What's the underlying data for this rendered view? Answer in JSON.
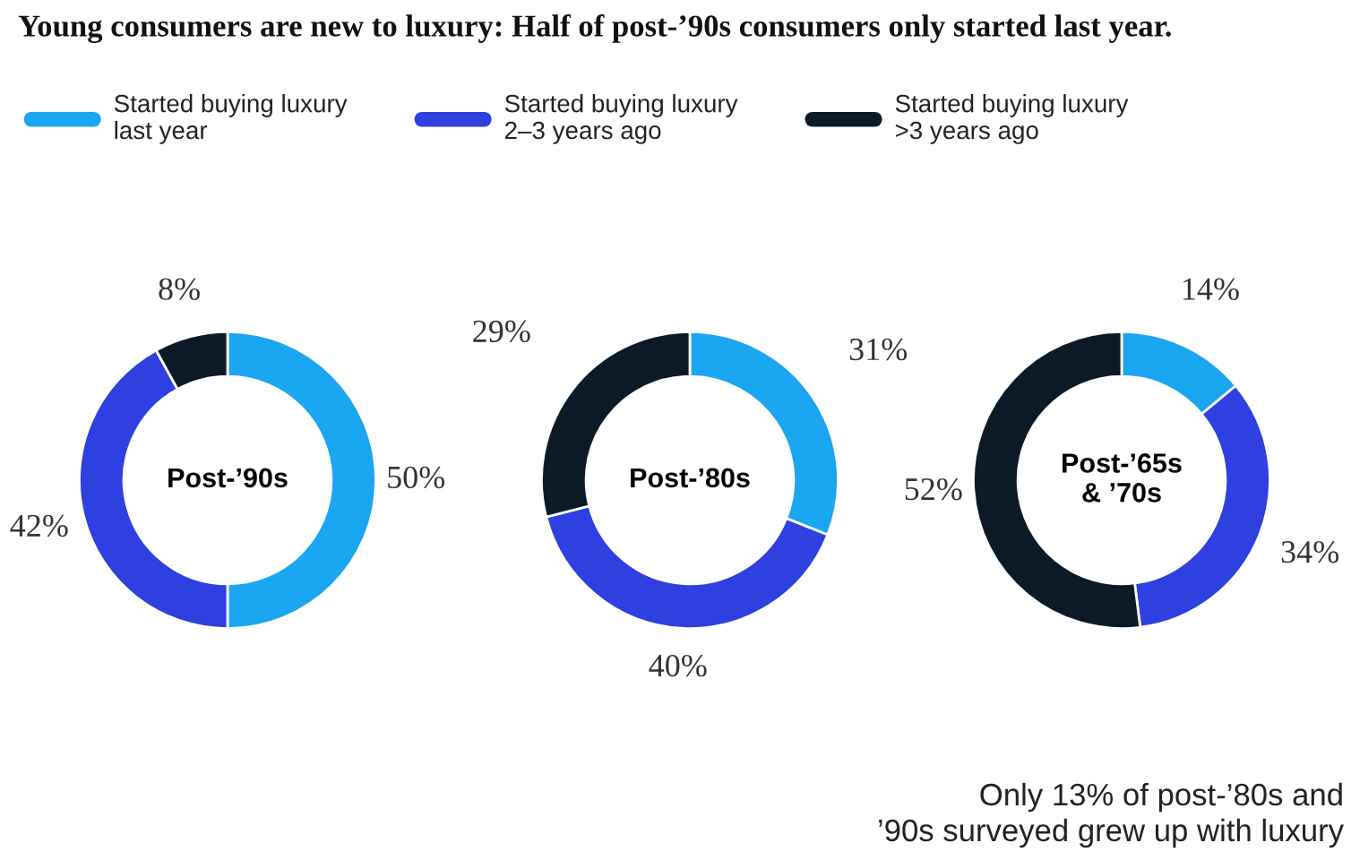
{
  "chart_data": [
    {
      "type": "donut",
      "title": "Young consumers are new to luxury: Half of post-’90s consumers only started last year.",
      "categories": [
        "Started buying luxury\nlast year",
        "Started buying luxury\n2–3 years ago",
        "Started buying luxury\n>3 years ago"
      ],
      "values": [
        50,
        42,
        8
      ],
      "value_labels": [
        "50%",
        "42%",
        "8%"
      ],
      "colors": [
        "#1aa6f0",
        "#2f3fe0",
        "#0c1a28"
      ],
      "legend": "top",
      "annotations": [
        "Post-’90s"
      ]
    },
    {
      "type": "donut",
      "categories": [
        null,
        null,
        null
      ],
      "values": [
        31,
        40,
        29
      ],
      "value_labels": [
        "31%",
        "40%",
        "29%"
      ],
      "colors": [
        "#1aa6f0",
        "#2f3fe0",
        "#0c1a28"
      ],
      "annotations": [
        "Post-’80s"
      ]
    },
    {
      "type": "donut",
      "categories": [
        null,
        null,
        null
      ],
      "values": [
        14,
        34,
        52
      ],
      "value_labels": [
        "14%",
        "34%",
        "52%"
      ],
      "colors": [
        "#1aa6f0",
        "#2f3fe0",
        "#0c1a28"
      ],
      "annotations": [
        "Post-’65s\n& ’70s",
        "Only 13% of post-’80s and\n’90s surveyed grew up with luxury"
      ]
    }
  ]
}
